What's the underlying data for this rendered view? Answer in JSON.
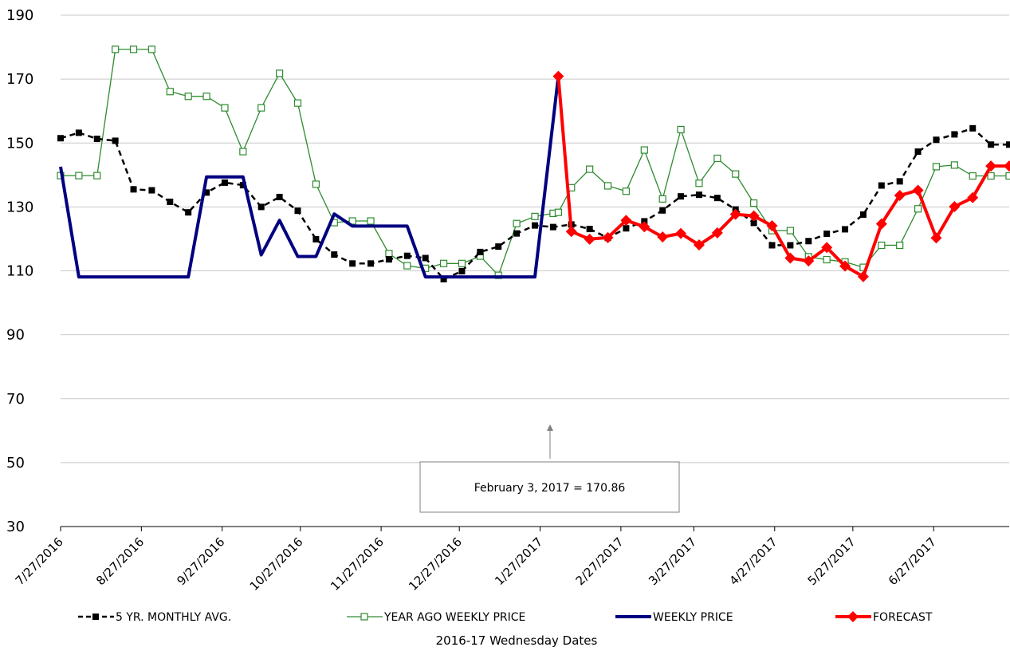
{
  "chart_data": {
    "type": "line",
    "xlabel": "2016-17 Wednesday Dates",
    "ylim": [
      30,
      190
    ],
    "yticks": [
      30,
      50,
      70,
      90,
      110,
      130,
      150,
      170,
      190
    ],
    "xticks": [
      "7/27/2016",
      "8/27/2016",
      "9/27/2016",
      "10/27/2016",
      "11/27/2016",
      "12/27/2016",
      "1/27/2017",
      "2/27/2017",
      "3/27/2017",
      "4/27/2017",
      "5/27/2017",
      "6/27/2017"
    ],
    "xrange": [
      "7/27/2016",
      "7/26/2017"
    ],
    "grid": "horizontal",
    "legend_position": "bottom",
    "annotation": {
      "text": "February 3, 2017  = 170.86",
      "target_date": "2/3/2017",
      "target_value": 170.86
    },
    "series": [
      {
        "name": "5 YR. MONTHLY AVG.",
        "color": "#000000",
        "style": "dashed",
        "marker": "filled-square",
        "dates": [
          "7/27/2016",
          "8/3/2016",
          "8/10/2016",
          "8/17/2016",
          "8/24/2016",
          "8/31/2016",
          "9/7/2016",
          "9/14/2016",
          "9/21/2016",
          "9/28/2016",
          "10/5/2016",
          "10/12/2016",
          "10/19/2016",
          "10/26/2016",
          "11/2/2016",
          "11/9/2016",
          "11/16/2016",
          "11/23/2016",
          "11/30/2016",
          "12/7/2016",
          "12/14/2016",
          "12/21/2016",
          "12/28/2016",
          "1/4/2017",
          "1/11/2017",
          "1/18/2017",
          "1/25/2017",
          "2/1/2017",
          "2/8/2017",
          "2/15/2017",
          "2/22/2017",
          "3/1/2017",
          "3/8/2017",
          "3/15/2017",
          "3/22/2017",
          "3/29/2017",
          "4/5/2017",
          "4/12/2017",
          "4/19/2017",
          "4/26/2017",
          "5/3/2017",
          "5/10/2017",
          "5/17/2017",
          "5/24/2017",
          "5/31/2017",
          "6/7/2017",
          "6/14/2017",
          "6/21/2017",
          "6/28/2017",
          "7/5/2017",
          "7/12/2017",
          "7/19/2017",
          "7/26/2017"
        ],
        "values": [
          151.5,
          153.2,
          151.3,
          150.7,
          135.5,
          135.2,
          131.6,
          128.3,
          134.5,
          137.6,
          136.8,
          130.0,
          133.1,
          128.8,
          119.9,
          115.1,
          112.3,
          112.3,
          113.6,
          114.7,
          114.0,
          107.4,
          109.9,
          115.9,
          117.6,
          121.7,
          124.2,
          123.7,
          124.5,
          123.1,
          120.3,
          123.3,
          125.5,
          128.9,
          133.3,
          133.8,
          132.8,
          129.2,
          125.0,
          118.0,
          118.0,
          119.3,
          121.6,
          123.0,
          127.6,
          136.7,
          138.0,
          147.3,
          151.0,
          152.7,
          154.6,
          149.5,
          149.5
        ]
      },
      {
        "name": "YEAR AGO WEEKLY PRICE",
        "color": "#2e8b2e",
        "style": "solid",
        "marker": "hollow-square",
        "dates": [
          "7/27/2016",
          "8/3/2016",
          "8/10/2016",
          "8/17/2016",
          "8/24/2016",
          "8/31/2016",
          "9/7/2016",
          "9/14/2016",
          "9/21/2016",
          "9/28/2016",
          "10/5/2016",
          "10/12/2016",
          "10/19/2016",
          "10/26/2016",
          "11/2/2016",
          "11/9/2016",
          "11/16/2016",
          "11/23/2016",
          "11/30/2016",
          "12/7/2016",
          "12/14/2016",
          "12/21/2016",
          "12/28/2016",
          "1/4/2017",
          "1/11/2017",
          "1/18/2017",
          "1/25/2017",
          "2/1/2017",
          "2/3/2017",
          "2/8/2017",
          "2/15/2017",
          "2/22/2017",
          "3/1/2017",
          "3/8/2017",
          "3/15/2017",
          "3/22/2017",
          "3/29/2017",
          "4/5/2017",
          "4/12/2017",
          "4/19/2017",
          "4/26/2017",
          "5/3/2017",
          "5/10/2017",
          "5/17/2017",
          "5/24/2017",
          "5/31/2017",
          "6/7/2017",
          "6/14/2017",
          "6/21/2017",
          "6/28/2017",
          "7/5/2017",
          "7/12/2017",
          "7/19/2017",
          "7/26/2017"
        ],
        "values": [
          139.8,
          139.8,
          139.8,
          179.3,
          179.3,
          179.3,
          166.1,
          164.6,
          164.6,
          161.0,
          147.3,
          161.0,
          171.8,
          162.5,
          137.1,
          125.1,
          125.6,
          125.6,
          115.4,
          111.6,
          110.8,
          112.3,
          112.3,
          114.6,
          108.6,
          124.8,
          127.0,
          128.0,
          128.3,
          136.0,
          141.8,
          136.6,
          134.9,
          147.8,
          132.5,
          154.2,
          137.4,
          145.2,
          140.3,
          131.2,
          122.6,
          122.6,
          114.4,
          113.5,
          112.8,
          111.1,
          118.0,
          118.0,
          129.4,
          142.6,
          143.1,
          139.7,
          139.7,
          139.7
        ]
      },
      {
        "name": "WEEKLY PRICE",
        "color": "#000080",
        "style": "solid",
        "marker": "none",
        "dates": [
          "7/27/2016",
          "8/3/2016",
          "8/10/2016",
          "8/17/2016",
          "8/24/2016",
          "8/31/2016",
          "9/7/2016",
          "9/14/2016",
          "9/21/2016",
          "9/28/2016",
          "10/5/2016",
          "10/12/2016",
          "10/19/2016",
          "10/26/2016",
          "11/2/2016",
          "11/9/2016",
          "11/16/2016",
          "11/23/2016",
          "11/30/2016",
          "12/7/2016",
          "12/14/2016",
          "12/21/2016",
          "12/28/2016",
          "1/4/2017",
          "1/11/2017",
          "1/18/2017",
          "1/25/2017",
          "2/3/2017"
        ],
        "values": [
          142.6,
          108.1,
          108.1,
          108.1,
          108.1,
          108.1,
          108.1,
          108.1,
          139.4,
          139.4,
          139.4,
          115.0,
          125.8,
          114.5,
          114.5,
          127.8,
          124.0,
          124.0,
          124.0,
          124.0,
          108.1,
          108.1,
          108.1,
          108.1,
          108.1,
          108.1,
          108.1,
          170.86
        ]
      },
      {
        "name": "FORECAST",
        "color": "#ff0000",
        "style": "solid",
        "marker": "filled-diamond",
        "dates": [
          "2/3/2017",
          "2/8/2017",
          "2/15/2017",
          "2/22/2017",
          "3/1/2017",
          "3/8/2017",
          "3/15/2017",
          "3/22/2017",
          "3/29/2017",
          "4/5/2017",
          "4/12/2017",
          "4/19/2017",
          "4/26/2017",
          "5/3/2017",
          "5/10/2017",
          "5/17/2017",
          "5/24/2017",
          "5/31/2017",
          "6/7/2017",
          "6/14/2017",
          "6/21/2017",
          "6/28/2017",
          "7/5/2017",
          "7/12/2017",
          "7/19/2017",
          "7/26/2017"
        ],
        "values": [
          170.86,
          122.3,
          119.9,
          120.4,
          125.8,
          123.8,
          120.6,
          121.7,
          118.1,
          121.9,
          127.7,
          127.2,
          124.1,
          114.0,
          113.1,
          117.3,
          111.5,
          108.2,
          124.7,
          133.6,
          135.2,
          120.3,
          130.1,
          132.9,
          142.8,
          142.8
        ]
      }
    ]
  }
}
